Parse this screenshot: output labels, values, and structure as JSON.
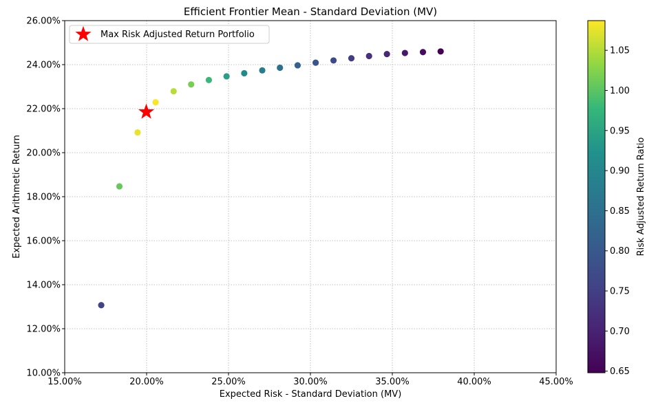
{
  "chart_data": {
    "type": "scatter",
    "title": "Efficient Frontier Mean - Standard Deviation (MV)",
    "xlabel": "Expected Risk - Standard Deviation (MV)",
    "ylabel": "Expected Arithmetic Return",
    "xlim": [
      0.15,
      0.45
    ],
    "ylim": [
      0.1,
      0.26
    ],
    "x_ticks": [
      0.15,
      0.2,
      0.25,
      0.3,
      0.35,
      0.4,
      0.45
    ],
    "x_tick_labels": [
      "15.00%",
      "20.00%",
      "25.00%",
      "30.00%",
      "35.00%",
      "40.00%",
      "45.00%"
    ],
    "y_ticks": [
      0.1,
      0.12,
      0.14,
      0.16,
      0.18,
      0.2,
      0.22,
      0.24,
      0.26
    ],
    "y_tick_labels": [
      "10.00%",
      "12.00%",
      "14.00%",
      "16.00%",
      "18.00%",
      "20.00%",
      "22.00%",
      "24.00%",
      "26.00%"
    ],
    "grid": true,
    "colorbar": {
      "label": "Risk Adjusted Return Ratio",
      "range": [
        0.648,
        1.087
      ],
      "ticks": [
        0.65,
        0.7,
        0.75,
        0.8,
        0.85,
        0.9,
        0.95,
        1.0,
        1.05
      ],
      "tick_labels": [
        "0.65",
        "0.70",
        "0.75",
        "0.80",
        "0.85",
        "0.90",
        "0.95",
        "1.00",
        "1.05"
      ],
      "colormap": "viridis"
    },
    "series": [
      {
        "points": [
          {
            "x": 0.1723,
            "y": 0.1307,
            "c": 0.759
          },
          {
            "x": 0.1834,
            "y": 0.1847,
            "c": 1.007
          },
          {
            "x": 0.1945,
            "y": 0.2092,
            "c": 1.076
          },
          {
            "x": 0.2055,
            "y": 0.2229,
            "c": 1.085
          },
          {
            "x": 0.2165,
            "y": 0.2279,
            "c": 1.053
          },
          {
            "x": 0.2272,
            "y": 0.231,
            "c": 1.017
          },
          {
            "x": 0.238,
            "y": 0.233,
            "c": 0.979
          },
          {
            "x": 0.2488,
            "y": 0.2347,
            "c": 0.943
          },
          {
            "x": 0.2596,
            "y": 0.2361,
            "c": 0.909
          },
          {
            "x": 0.2706,
            "y": 0.2374,
            "c": 0.877
          },
          {
            "x": 0.2814,
            "y": 0.2386,
            "c": 0.848
          },
          {
            "x": 0.2922,
            "y": 0.2397,
            "c": 0.82
          },
          {
            "x": 0.3032,
            "y": 0.2409,
            "c": 0.795
          },
          {
            "x": 0.3141,
            "y": 0.2419,
            "c": 0.77
          },
          {
            "x": 0.325,
            "y": 0.2429,
            "c": 0.747
          },
          {
            "x": 0.3358,
            "y": 0.2439,
            "c": 0.726
          },
          {
            "x": 0.3467,
            "y": 0.2448,
            "c": 0.706
          },
          {
            "x": 0.3577,
            "y": 0.2453,
            "c": 0.686
          },
          {
            "x": 0.3687,
            "y": 0.2457,
            "c": 0.666
          },
          {
            "x": 0.3795,
            "y": 0.246,
            "c": 0.648
          }
        ]
      }
    ],
    "highlight": {
      "name": "Max Risk Adjusted Return Portfolio",
      "x": 0.1998,
      "y": 0.2185,
      "marker": "star",
      "color": "#ff0000"
    },
    "legend": {
      "placement": "top-left",
      "entries": [
        "Max Risk Adjusted Return Portfolio"
      ]
    }
  }
}
